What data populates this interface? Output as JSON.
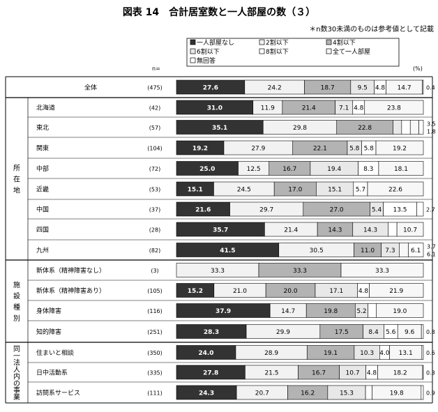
{
  "chart_data": {
    "type": "bar",
    "stacked": "100%",
    "orientation": "horizontal",
    "title": "図表 14　合計居室数と一人部屋の数（３）",
    "note": "＊n数30未満のものは参考値として記載",
    "n_label": "n=",
    "unit_label": "(%)",
    "series": [
      {
        "name": "一人部屋なし",
        "color": "#333333",
        "text_color": "#ffffff"
      },
      {
        "name": "2割以下",
        "color": "#f2f2f2",
        "text_color": "#000000"
      },
      {
        "name": "4割以下",
        "color": "#b3b3b3",
        "text_color": "#000000"
      },
      {
        "name": "6割以下",
        "color": "#e8e8e8",
        "text_color": "#000000"
      },
      {
        "name": "8割以下",
        "color": "#ffffff",
        "text_color": "#000000"
      },
      {
        "name": "全て一人部屋",
        "color": "#f7f7f7",
        "text_color": "#000000"
      },
      {
        "name": "無回答",
        "color": "#ffffff",
        "text_color": "#000000"
      }
    ],
    "groups": [
      {
        "label": "",
        "rows": [
          0
        ]
      },
      {
        "label": "所在地",
        "rows": [
          1,
          2,
          3,
          4,
          5,
          6,
          7,
          8
        ]
      },
      {
        "label": "施設種別",
        "rows": [
          9,
          10,
          11,
          12
        ]
      },
      {
        "label": "同一法人内の事業",
        "rows": [
          13,
          14,
          15
        ]
      }
    ],
    "rows": [
      {
        "label": "全体",
        "n": "(475)",
        "values": [
          27.6,
          24.2,
          18.7,
          9.5,
          4.8,
          14.7,
          0.4
        ],
        "labels": [
          "27.6",
          "24.2",
          "18.7",
          "9.5",
          "4.8",
          "14.7",
          "0.4"
        ]
      },
      {
        "label": "北海道",
        "n": "(42)",
        "values": [
          31.0,
          11.9,
          21.4,
          7.1,
          4.8,
          23.8,
          0
        ],
        "labels": [
          "31.0",
          "11.9",
          "21.4",
          "7.1",
          "4.8",
          "23.8",
          ""
        ]
      },
      {
        "label": "東北",
        "n": "(57)",
        "values": [
          35.1,
          29.8,
          22.8,
          3.5,
          3.5,
          3.5,
          1.8
        ],
        "labels": [
          "35.1",
          "29.8",
          "22.8",
          "3.5",
          "3.5",
          "3.5",
          "1.8"
        ]
      },
      {
        "label": "関東",
        "n": "(104)",
        "values": [
          19.2,
          27.9,
          22.1,
          5.8,
          5.8,
          19.2,
          0
        ],
        "labels": [
          "19.2",
          "27.9",
          "22.1",
          "5.8",
          "5.8",
          "19.2",
          ""
        ]
      },
      {
        "label": "中部",
        "n": "(72)",
        "values": [
          25.0,
          12.5,
          16.7,
          19.4,
          8.3,
          18.1,
          0
        ],
        "labels": [
          "25.0",
          "12.5",
          "16.7",
          "19.4",
          "8.3",
          "18.1",
          ""
        ]
      },
      {
        "label": "近畿",
        "n": "(53)",
        "values": [
          15.1,
          24.5,
          17.0,
          15.1,
          5.7,
          22.6,
          0
        ],
        "labels": [
          "15.1",
          "24.5",
          "17.0",
          "15.1",
          "5.7",
          "22.6",
          ""
        ]
      },
      {
        "label": "中国",
        "n": "(37)",
        "values": [
          21.6,
          29.7,
          27.0,
          5.4,
          13.5,
          0,
          2.7
        ],
        "labels": [
          "21.6",
          "29.7",
          "27.0",
          "5.4",
          "13.5",
          "",
          "2.7"
        ]
      },
      {
        "label": "四国",
        "n": "(28)",
        "values": [
          35.7,
          21.4,
          14.3,
          14.3,
          3.6,
          10.7,
          0
        ],
        "labels": [
          "35.7",
          "21.4",
          "14.3",
          "14.3",
          "3.6",
          "10.7",
          ""
        ]
      },
      {
        "label": "九州",
        "n": "(82)",
        "values": [
          41.5,
          30.5,
          11.0,
          7.3,
          0,
          3.7,
          6.1
        ],
        "labels": [
          "41.5",
          "30.5",
          "11.0",
          "7.3",
          "",
          "3.7",
          "6.1"
        ]
      },
      {
        "label": "新体系（精神障害なし）",
        "n": "(3)",
        "values": [
          0,
          33.3,
          33.3,
          0,
          0,
          33.3,
          0
        ],
        "labels": [
          "",
          "33.3",
          "33.3",
          "",
          "",
          "33.3",
          ""
        ]
      },
      {
        "label": "新体系（精神障害あり）",
        "n": "(105)",
        "values": [
          15.2,
          21.0,
          20.0,
          17.1,
          4.8,
          21.9,
          0
        ],
        "labels": [
          "15.2",
          "21.0",
          "20.0",
          "17.1",
          "4.8",
          "21.9",
          ""
        ]
      },
      {
        "label": "身体障害",
        "n": "(116)",
        "values": [
          37.9,
          14.7,
          19.8,
          5.2,
          3.4,
          19.0,
          0
        ],
        "labels": [
          "37.9",
          "14.7",
          "19.8",
          "5.2",
          "3.4",
          "19.0",
          ""
        ]
      },
      {
        "label": "知的障害",
        "n": "(251)",
        "values": [
          28.3,
          29.9,
          17.5,
          8.4,
          5.6,
          9.6,
          0.8
        ],
        "labels": [
          "28.3",
          "29.9",
          "17.5",
          "8.4",
          "5.6",
          "9.6",
          "0.8"
        ]
      },
      {
        "label": "住まいと相談",
        "n": "(350)",
        "values": [
          24.0,
          28.9,
          19.1,
          10.3,
          4.0,
          13.1,
          0.6
        ],
        "labels": [
          "24.0",
          "28.9",
          "19.1",
          "10.3",
          "4.0",
          "13.1",
          "0.6"
        ]
      },
      {
        "label": "日中活動系",
        "n": "(335)",
        "values": [
          27.8,
          21.5,
          16.7,
          10.7,
          4.8,
          18.2,
          0.3
        ],
        "labels": [
          "27.8",
          "21.5",
          "16.7",
          "10.7",
          "4.8",
          "18.2",
          "0.3"
        ]
      },
      {
        "label": "訪問系サービス",
        "n": "(111)",
        "values": [
          24.3,
          20.7,
          16.2,
          15.3,
          2.7,
          19.8,
          0.9
        ],
        "labels": [
          "24.3",
          "20.7",
          "16.2",
          "15.3",
          "2.7",
          "19.8",
          "0.9"
        ]
      }
    ],
    "outside_labels": [
      {
        "row": 2,
        "texts": [
          "3.5",
          "1.8"
        ]
      },
      {
        "row": 8,
        "texts": [
          "3.7",
          "6.1"
        ]
      }
    ],
    "xlim": [
      0,
      100
    ]
  }
}
